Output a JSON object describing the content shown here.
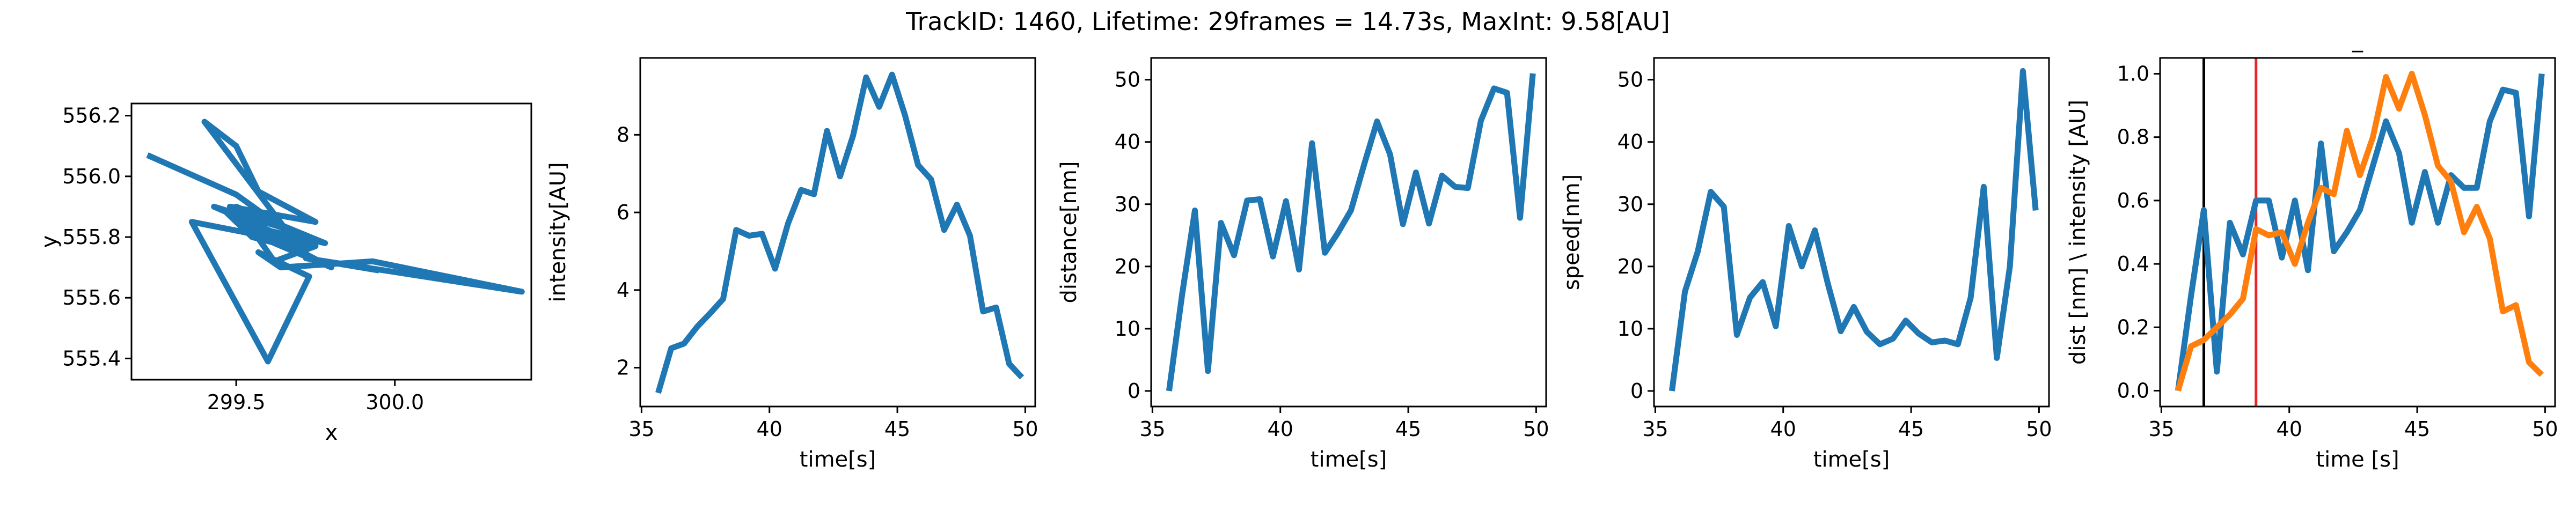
{
  "figure": {
    "suptitle": "TrackID: 1460, Lifetime: 29frames = 14.73s, MaxInt: 9.58[AU]"
  },
  "colors": {
    "blue": "#1f77b4",
    "orange": "#ff7f0e",
    "red": "#e8262a",
    "black": "#000000"
  },
  "chart_data": [
    {
      "type": "line",
      "title": "",
      "xlabel": "x",
      "ylabel": "y",
      "xlim": [
        299.17,
        300.43
      ],
      "ylim": [
        555.33,
        556.24
      ],
      "xticks": [
        "299.5",
        "300.0"
      ],
      "xtick_values": [
        299.5,
        300.0
      ],
      "yticks": [
        "555.4",
        "555.6",
        "555.8",
        "556.0",
        "556.2"
      ],
      "ytick_values": [
        555.4,
        555.6,
        555.8,
        556.0,
        556.2
      ],
      "series": [
        {
          "color": "blue",
          "x": [
            299.22,
            299.5,
            299.66,
            299.4,
            299.5,
            299.57,
            299.75,
            299.48,
            299.68,
            299.43,
            299.72,
            299.53,
            299.8,
            299.47,
            299.55,
            299.7,
            299.52,
            299.78,
            299.5,
            299.62,
            299.75,
            299.36,
            299.6,
            299.73,
            299.57,
            299.64,
            299.93,
            300.4,
            299.72,
            299.95
          ],
          "y": [
            556.07,
            555.94,
            555.82,
            556.18,
            556.1,
            555.95,
            555.85,
            555.9,
            555.82,
            555.9,
            555.77,
            555.82,
            555.7,
            555.88,
            555.8,
            555.76,
            555.84,
            555.78,
            555.9,
            555.72,
            555.77,
            555.85,
            555.39,
            555.67,
            555.75,
            555.7,
            555.72,
            555.62,
            555.73,
            555.69
          ]
        }
      ]
    },
    {
      "type": "line",
      "title": "",
      "xlabel": "time[s]",
      "ylabel": "intensity[AU]",
      "xlim": [
        34.95,
        50.39
      ],
      "ylim": [
        1.0,
        9.98
      ],
      "xticks": [
        "35",
        "40",
        "45",
        "50"
      ],
      "xtick_values": [
        35,
        40,
        45,
        50
      ],
      "yticks": [
        "2",
        "4",
        "6",
        "8"
      ],
      "ytick_values": [
        2,
        4,
        6,
        8
      ],
      "series": [
        {
          "color": "blue",
          "x": [
            35.65,
            36.16,
            36.66,
            37.17,
            37.68,
            38.19,
            38.7,
            39.2,
            39.71,
            40.22,
            40.73,
            41.24,
            41.74,
            42.25,
            42.76,
            43.27,
            43.78,
            44.29,
            44.79,
            45.3,
            45.81,
            46.32,
            46.83,
            47.33,
            47.84,
            48.35,
            48.86,
            49.37,
            49.87
          ],
          "y": [
            1.35,
            2.5,
            2.62,
            3.05,
            3.4,
            3.77,
            5.55,
            5.4,
            5.45,
            4.55,
            5.72,
            6.58,
            6.47,
            8.1,
            6.93,
            7.98,
            9.48,
            8.72,
            9.55,
            8.5,
            7.22,
            6.85,
            5.55,
            6.2,
            5.4,
            3.45,
            3.55,
            2.1,
            1.75
          ]
        }
      ]
    },
    {
      "type": "line",
      "title": "",
      "xlabel": "time[s]",
      "ylabel": "distance[nm]",
      "xlim": [
        34.95,
        50.39
      ],
      "ylim": [
        -2.5,
        53.5
      ],
      "xticks": [
        "35",
        "40",
        "45",
        "50"
      ],
      "xtick_values": [
        35,
        40,
        45,
        50
      ],
      "yticks": [
        "0",
        "10",
        "20",
        "30",
        "40",
        "50"
      ],
      "ytick_values": [
        0,
        10,
        20,
        30,
        40,
        50
      ],
      "series": [
        {
          "color": "blue",
          "x": [
            35.65,
            36.16,
            36.66,
            37.17,
            37.68,
            38.19,
            38.7,
            39.2,
            39.71,
            40.22,
            40.73,
            41.24,
            41.74,
            42.25,
            42.76,
            43.27,
            43.78,
            44.29,
            44.79,
            45.3,
            45.81,
            46.32,
            46.83,
            47.33,
            47.84,
            48.35,
            48.86,
            49.37,
            49.87
          ],
          "y": [
            0,
            15.5,
            29,
            3.2,
            27,
            21.8,
            30.6,
            30.8,
            21.6,
            30.5,
            19.5,
            39.8,
            22.2,
            25.4,
            29,
            36.3,
            43.3,
            38,
            26.8,
            35.1,
            26.9,
            34.6,
            32.8,
            32.6,
            43.4,
            48.6,
            47.9,
            27.8,
            51
          ]
        }
      ]
    },
    {
      "type": "line",
      "title": "",
      "xlabel": "time[s]",
      "ylabel": "speed[nm]",
      "xlim": [
        34.95,
        50.39
      ],
      "ylim": [
        -2.5,
        53.5
      ],
      "xticks": [
        "35",
        "40",
        "45",
        "50"
      ],
      "xtick_values": [
        35,
        40,
        45,
        50
      ],
      "yticks": [
        "0",
        "10",
        "20",
        "30",
        "40",
        "50"
      ],
      "ytick_values": [
        0,
        10,
        20,
        30,
        40,
        50
      ],
      "series": [
        {
          "color": "blue",
          "x": [
            35.65,
            36.16,
            36.66,
            37.17,
            37.68,
            38.19,
            38.7,
            39.2,
            39.71,
            40.22,
            40.73,
            41.24,
            41.74,
            42.25,
            42.76,
            43.27,
            43.78,
            44.29,
            44.79,
            45.3,
            45.81,
            46.32,
            46.83,
            47.33,
            47.84,
            48.35,
            48.86,
            49.37,
            49.87
          ],
          "y": [
            0,
            16,
            22.4,
            32,
            29.6,
            9,
            15,
            17.5,
            10.4,
            26.5,
            20,
            25.8,
            17.3,
            9.6,
            13.5,
            9.5,
            7.5,
            8.4,
            11.3,
            9.2,
            7.8,
            8.1,
            7.5,
            15,
            32.8,
            5.3,
            20,
            51.4,
            29
          ]
        }
      ]
    },
    {
      "type": "line",
      "title": "_",
      "xlabel": "time [s]",
      "ylabel": "dist [nm] \\ intensity [AU]",
      "xlim": [
        34.95,
        50.39
      ],
      "ylim": [
        -0.05,
        1.05
      ],
      "xticks": [
        "35",
        "40",
        "45",
        "50"
      ],
      "xtick_values": [
        35,
        40,
        45,
        50
      ],
      "yticks": [
        "0.0",
        "0.2",
        "0.4",
        "0.6",
        "0.8",
        "1.0"
      ],
      "ytick_values": [
        0.0,
        0.2,
        0.4,
        0.6,
        0.8,
        1.0
      ],
      "vlines": [
        {
          "x": 36.66,
          "color": "black"
        },
        {
          "x": 38.7,
          "color": "red"
        }
      ],
      "series": [
        {
          "color": "blue",
          "x": [
            35.65,
            36.16,
            36.66,
            37.17,
            37.68,
            38.19,
            38.7,
            39.2,
            39.71,
            40.22,
            40.73,
            41.24,
            41.74,
            42.25,
            42.76,
            43.27,
            43.78,
            44.29,
            44.79,
            45.3,
            45.81,
            46.32,
            46.83,
            47.33,
            47.84,
            48.35,
            48.86,
            49.37,
            49.87
          ],
          "y": [
            0,
            0.3,
            0.57,
            0.06,
            0.53,
            0.43,
            0.6,
            0.6,
            0.42,
            0.6,
            0.38,
            0.78,
            0.44,
            0.5,
            0.57,
            0.71,
            0.85,
            0.75,
            0.53,
            0.69,
            0.53,
            0.68,
            0.64,
            0.64,
            0.85,
            0.95,
            0.94,
            0.55,
            1.0
          ]
        },
        {
          "color": "orange",
          "x": [
            35.65,
            36.16,
            36.66,
            37.17,
            37.68,
            38.19,
            38.7,
            39.2,
            39.71,
            40.22,
            40.73,
            41.24,
            41.74,
            42.25,
            42.76,
            43.27,
            43.78,
            44.29,
            44.79,
            45.3,
            45.81,
            46.32,
            46.83,
            47.33,
            47.84,
            48.35,
            48.86,
            49.37,
            49.87
          ],
          "y": [
            0,
            0.14,
            0.16,
            0.2,
            0.24,
            0.29,
            0.51,
            0.49,
            0.5,
            0.4,
            0.53,
            0.64,
            0.62,
            0.82,
            0.68,
            0.8,
            0.99,
            0.89,
            1.0,
            0.87,
            0.71,
            0.66,
            0.5,
            0.58,
            0.48,
            0.25,
            0.27,
            0.09,
            0.05
          ]
        }
      ]
    }
  ]
}
